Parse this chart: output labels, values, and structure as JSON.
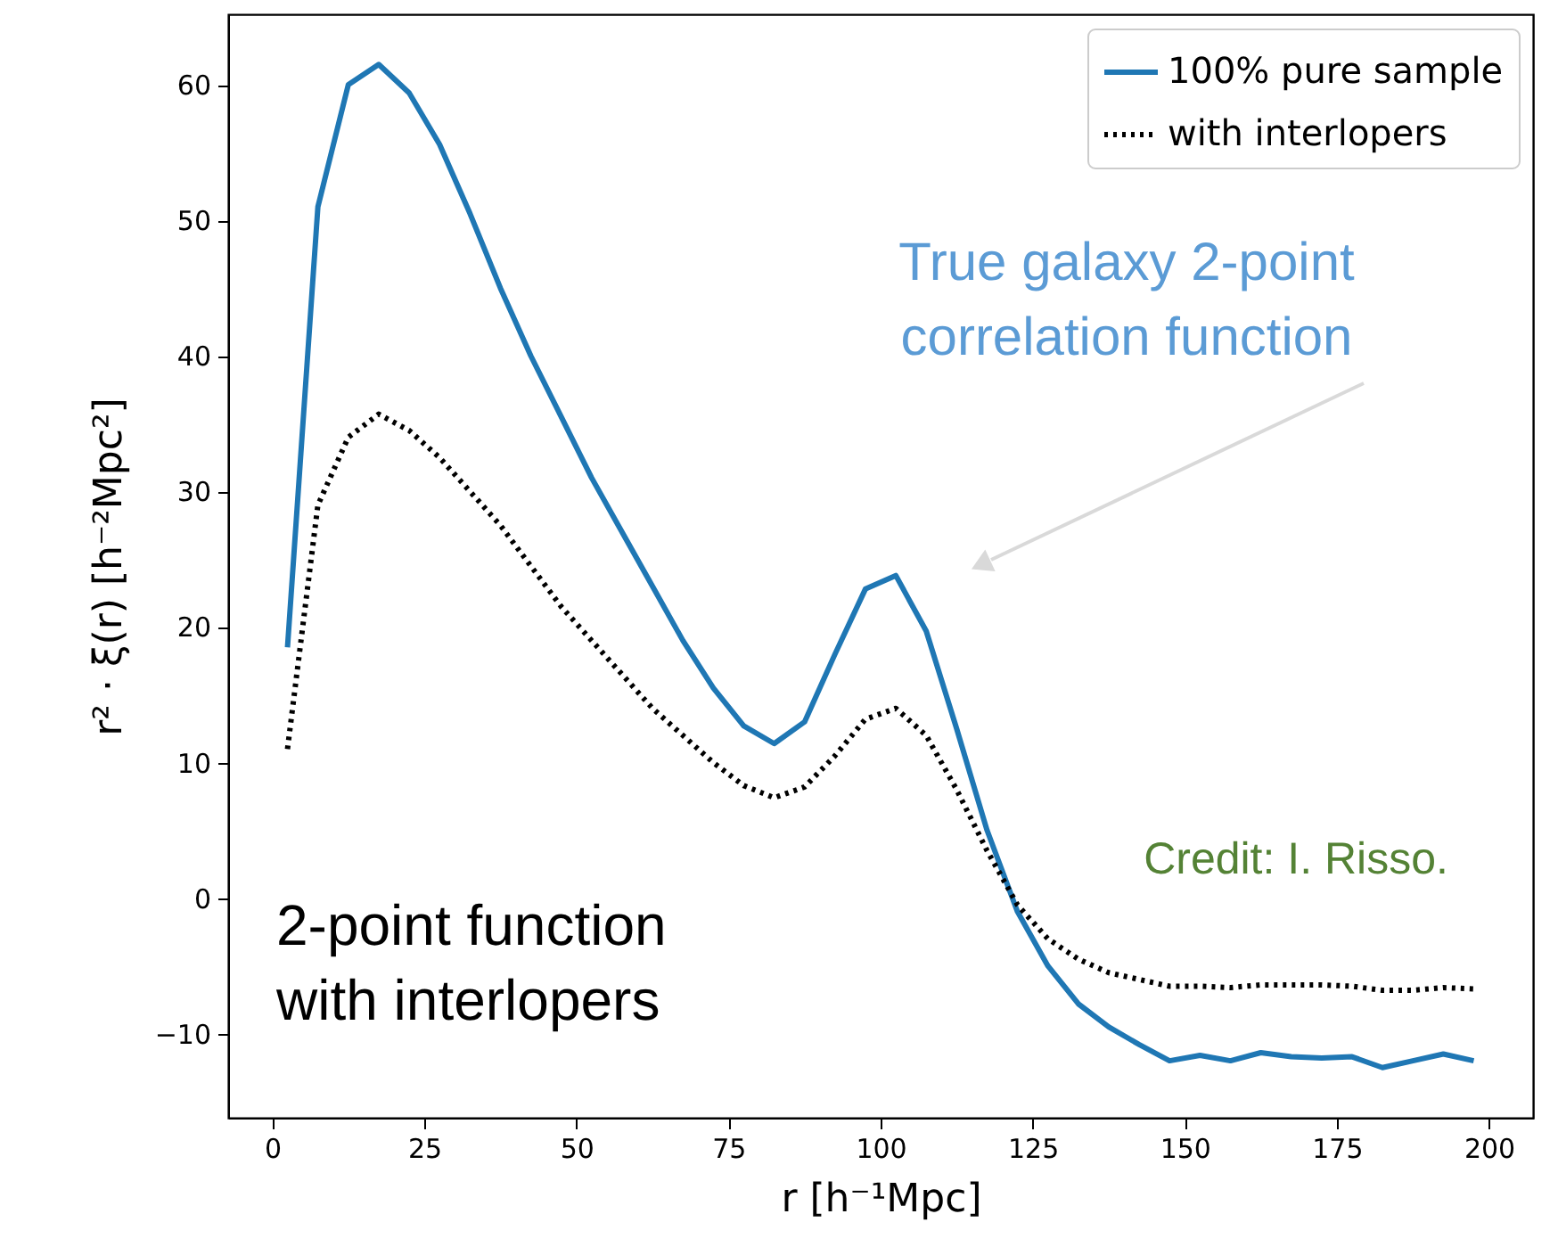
{
  "chart_data": {
    "type": "line",
    "xlabel": "r  [h⁻¹Mpc]",
    "ylabel": "r² · ξ(r)  [h⁻²Mpc²]",
    "annotations": [
      "True galaxy 2-point\ncorrelation function",
      "2-point function\nwith interlopers",
      "Credit: I. Risso."
    ],
    "x": [
      2.5,
      7.5,
      12.5,
      17.5,
      22.5,
      27.5,
      32.5,
      37.5,
      42.5,
      47.5,
      52.5,
      57.5,
      62.5,
      67.5,
      72.5,
      77.5,
      82.5,
      87.5,
      92.5,
      97.5,
      102.5,
      107.5,
      112.5,
      117.5,
      122.5,
      127.5,
      132.5,
      137.5,
      142.5,
      147.5,
      152.5,
      157.5,
      162.5,
      167.5,
      172.5,
      177.5,
      182.5,
      187.5,
      192.5,
      197.5
    ],
    "series": [
      {
        "name": "100% pure sample",
        "color": "#1f77b4",
        "line_style": "solid",
        "values": [
          18.5,
          51,
          60,
          61.5,
          59.4,
          55.6,
          50.5,
          45,
          40,
          35.5,
          31,
          27,
          23,
          19,
          15.5,
          12.7,
          11.4,
          13,
          18,
          22.8,
          23.8,
          19.7,
          12.5,
          5,
          -1,
          -5,
          -7.8,
          -9.5,
          -10.8,
          -12,
          -11.6,
          -12,
          -11.4,
          -11.7,
          -11.8,
          -11.7,
          -12.5,
          -12,
          -11.5,
          -12
        ]
      },
      {
        "name": "with interlopers",
        "color": "#000000",
        "line_style": "dotted",
        "values": [
          11,
          29,
          34,
          35.7,
          34.5,
          32.5,
          30,
          27.5,
          24.5,
          21.5,
          19,
          16.5,
          14,
          12,
          10,
          8.3,
          7.4,
          8.2,
          10.5,
          13.2,
          14,
          12,
          8,
          3.5,
          -0.5,
          -3,
          -4.5,
          -5.5,
          -6,
          -6.5,
          -6.5,
          -6.6,
          -6.4,
          -6.4,
          -6.4,
          -6.5,
          -6.8,
          -6.8,
          -6.6,
          -6.7
        ]
      }
    ],
    "xlim": [
      -7.25,
      207.25
    ],
    "xticks": [
      0,
      25,
      50,
      75,
      100,
      125,
      150,
      175,
      200
    ],
    "ylim": [
      -16.2,
      65.2
    ],
    "yticks": [
      -10,
      0,
      10,
      20,
      30,
      40,
      50,
      60
    ],
    "grid": false,
    "legend": "top right"
  }
}
